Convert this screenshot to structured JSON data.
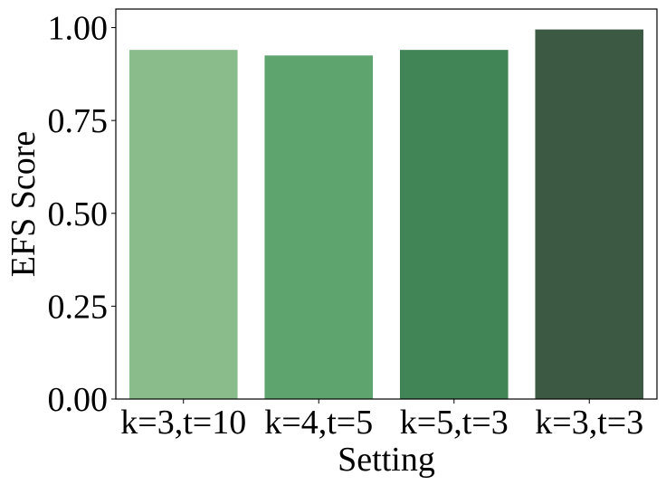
{
  "chart_data": {
    "type": "bar",
    "title": "",
    "xlabel": "Setting",
    "ylabel": "EFS Score",
    "categories": [
      "k=3,t=10",
      "k=4,t=5",
      "k=5,t=3",
      "k=3,t=3"
    ],
    "values": [
      0.94,
      0.925,
      0.94,
      0.995
    ],
    "colors": [
      "#8abc8b",
      "#5da46e",
      "#418456",
      "#3b5943"
    ],
    "ylim": [
      0,
      1.05
    ],
    "yticks": [
      0.0,
      0.25,
      0.5,
      0.75,
      1.0
    ],
    "ytick_labels": [
      "0.00",
      "0.25",
      "0.50",
      "0.75",
      "1.00"
    ],
    "grid": false,
    "legend": "none"
  }
}
